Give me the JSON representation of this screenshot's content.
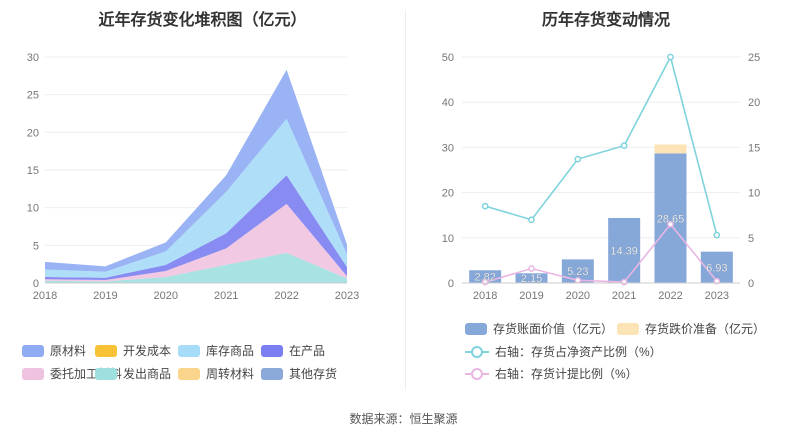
{
  "left_title": "近年存货变化堆积图（亿元）",
  "right_title": "历年存货变动情况",
  "source": "数据来源：恒生聚源",
  "chart_data": [
    {
      "type": "area",
      "title": "近年存货变化堆积图（亿元）",
      "categories": [
        "2018",
        "2019",
        "2020",
        "2021",
        "2022",
        "2023"
      ],
      "ylim": [
        0,
        30
      ],
      "yticks": [
        0,
        5,
        10,
        15,
        20,
        25,
        30
      ],
      "grid": true,
      "legend_position": "bottom",
      "series": [
        {
          "name": "原材料",
          "color": "#8fabf3",
          "values": [
            1.0,
            0.7,
            1.2,
            2.2,
            6.5,
            1.3
          ]
        },
        {
          "name": "开发成本",
          "color": "#f7c334",
          "values": [
            0,
            0,
            0,
            0,
            0,
            0
          ]
        },
        {
          "name": "库存商品",
          "color": "#a6dcf7",
          "values": [
            1.0,
            0.8,
            1.8,
            5.5,
            7.5,
            1.7
          ]
        },
        {
          "name": "在产品",
          "color": "#7b7ef0",
          "values": [
            0.3,
            0.3,
            0.8,
            2.0,
            3.8,
            1.2
          ]
        },
        {
          "name": "委托加工材料",
          "color": "#efc3df",
          "values": [
            0.2,
            0.2,
            0.8,
            2.2,
            6.5,
            0.3
          ]
        },
        {
          "name": "发出商品",
          "color": "#9edfdf",
          "values": [
            0.3,
            0.2,
            0.8,
            2.4,
            4.0,
            0.6
          ]
        },
        {
          "name": "周转材料",
          "color": "#f9d48a",
          "values": [
            0,
            0,
            0,
            0,
            0,
            0
          ]
        },
        {
          "name": "其他存货",
          "color": "#8aa9d8",
          "values": [
            0,
            0,
            0,
            0,
            0,
            0
          ]
        }
      ]
    },
    {
      "type": "bar",
      "title": "历年存货变动情况",
      "categories": [
        "2018",
        "2019",
        "2020",
        "2021",
        "2022",
        "2023"
      ],
      "ylim_left": [
        0,
        50
      ],
      "yticks_left": [
        0,
        10,
        20,
        30,
        40,
        50
      ],
      "ylim_right": [
        0,
        25
      ],
      "yticks_right": [
        0,
        5,
        10,
        15,
        20,
        25
      ],
      "grid": true,
      "legend_position": "bottom",
      "bars": [
        {
          "name": "存货账面价值（亿元）",
          "color": "#86a8d9",
          "values": [
            2.82,
            2.15,
            5.23,
            14.39,
            28.65,
            6.93
          ],
          "labels": [
            "2.82",
            "2.15",
            "5.23",
            "14.39",
            "28.65",
            "6.93"
          ]
        },
        {
          "name": "存货跌价准备（亿元）",
          "color": "#fde4b6",
          "values": [
            0,
            0,
            0,
            0,
            2.0,
            0
          ]
        }
      ],
      "lines": [
        {
          "name": "右轴：存货占净资产比例（%）",
          "color": "#7fd3dc",
          "values": [
            8.5,
            7.0,
            13.7,
            15.2,
            25.0,
            5.3
          ]
        },
        {
          "name": "右轴：存货计提比例（%）",
          "color": "#e9b6e3",
          "values": [
            0.1,
            1.6,
            0.3,
            0.1,
            6.5,
            0.2
          ]
        }
      ]
    }
  ]
}
